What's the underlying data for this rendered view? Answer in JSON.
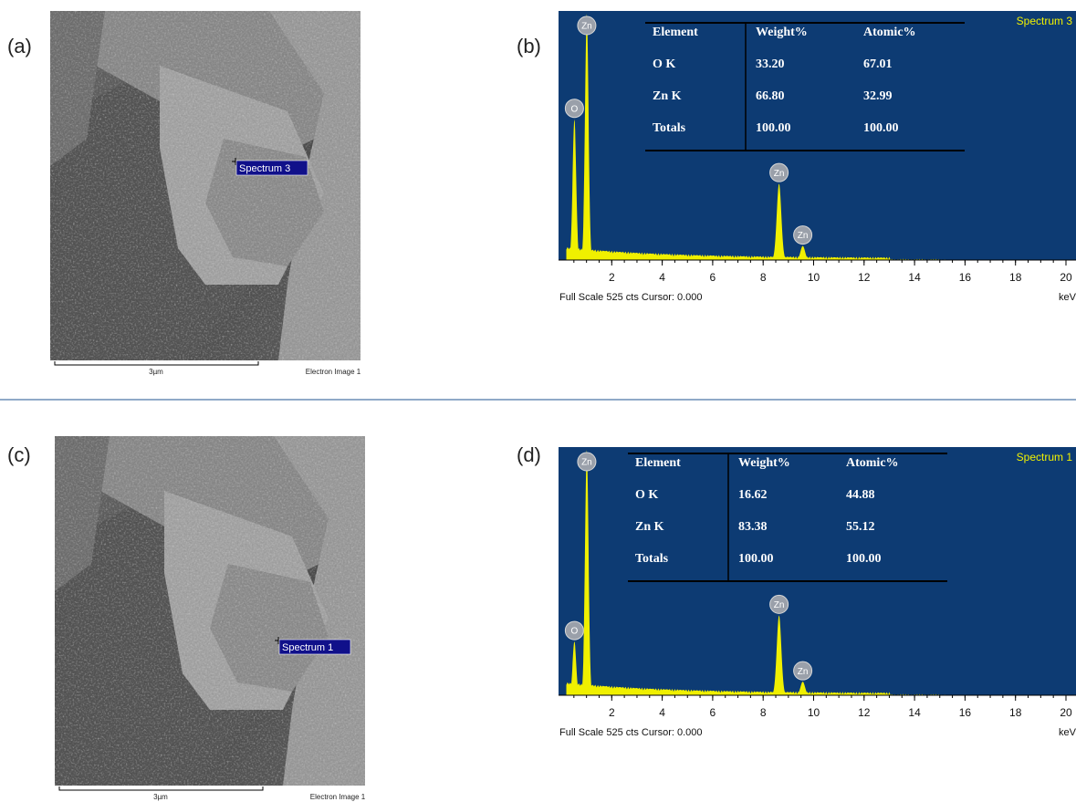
{
  "figure": {
    "rows": [
      {
        "sem": {
          "label": "(a)",
          "spot_label": "Spectrum 3",
          "scale_bar": "3µm",
          "image_name": "Electron Image 1"
        },
        "eds": {
          "label": "(b)",
          "spectrum_name": "Spectrum 3",
          "table": {
            "header": [
              "Element",
              "Weight%",
              "Atomic%"
            ],
            "rows": [
              [
                "O K",
                "33.20",
                "67.01"
              ],
              [
                "Zn K",
                "66.80",
                "32.99"
              ],
              [
                "Totals",
                "100.00",
                "100.00"
              ]
            ]
          },
          "xlim": [
            0,
            20
          ],
          "xticks": [
            2,
            4,
            6,
            8,
            10,
            12,
            14,
            16,
            18,
            20
          ],
          "x_unit": "keV",
          "ylim": [
            0,
            525
          ],
          "footer": "Full Scale 525 cts Cursor: 0.000",
          "peaks": [
            {
              "name": "O",
              "x": 0.52,
              "counts": 300
            },
            {
              "name": "Zn",
              "x": 1.01,
              "counts": 525
            },
            {
              "name": "Zn",
              "x": 8.63,
              "counts": 163
            },
            {
              "name": "Zn",
              "x": 9.57,
              "counts": 30
            }
          ]
        }
      },
      {
        "sem": {
          "label": "(c)",
          "spot_label": "Spectrum 1",
          "scale_bar": "3µm",
          "image_name": "Electron Image 1"
        },
        "eds": {
          "label": "(d)",
          "spectrum_name": "Spectrum 1",
          "table": {
            "header": [
              "Element",
              "Weight%",
              "Atomic%"
            ],
            "rows": [
              [
                "O K",
                "16.62",
                "44.88"
              ],
              [
                "Zn K",
                "83.38",
                "55.12"
              ],
              [
                "Totals",
                "100.00",
                "100.00"
              ]
            ]
          },
          "xlim": [
            0,
            20
          ],
          "xticks": [
            2,
            4,
            6,
            8,
            10,
            12,
            14,
            16,
            18,
            20
          ],
          "x_unit": "keV",
          "ylim": [
            0,
            525
          ],
          "footer": "Full Scale 525 cts Cursor: 0.000",
          "peaks": [
            {
              "name": "O",
              "x": 0.52,
              "counts": 115
            },
            {
              "name": "Zn",
              "x": 1.01,
              "counts": 525
            },
            {
              "name": "Zn",
              "x": 8.63,
              "counts": 171
            },
            {
              "name": "Zn",
              "x": 9.57,
              "counts": 29
            }
          ]
        }
      }
    ]
  }
}
